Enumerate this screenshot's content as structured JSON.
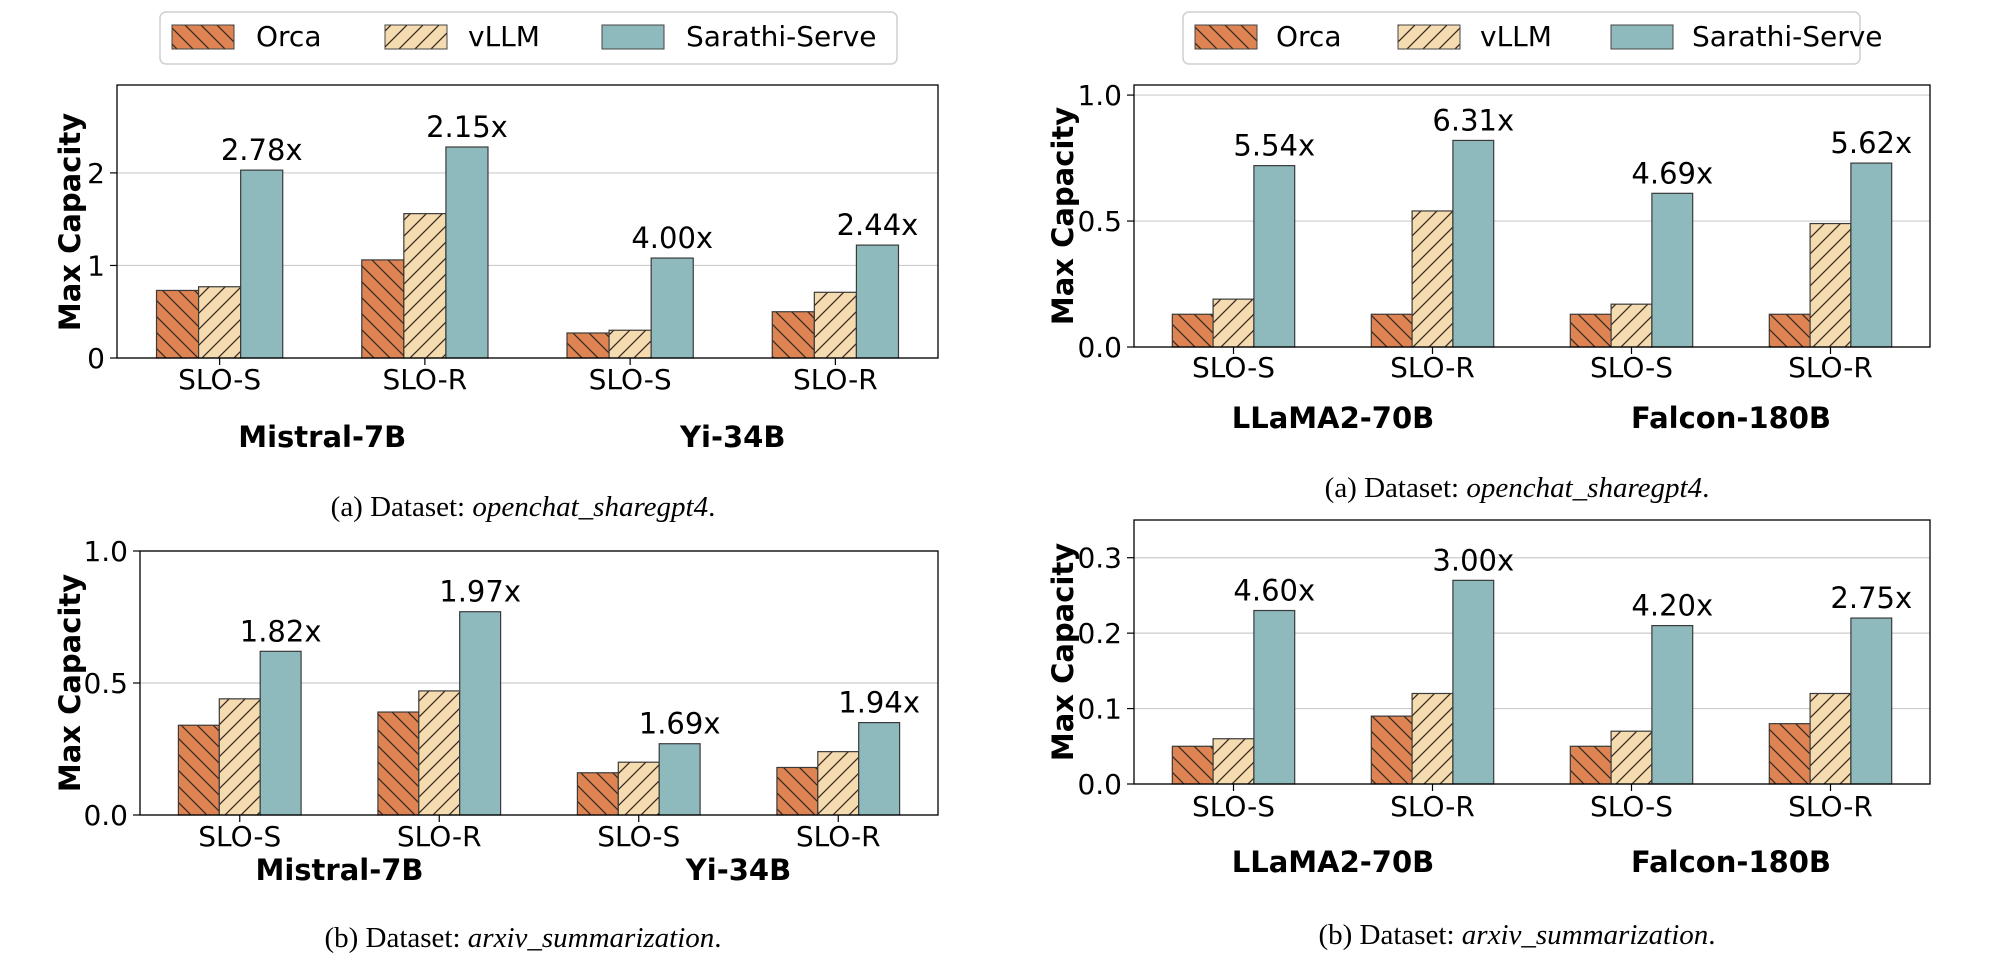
{
  "legend": {
    "items": [
      {
        "name": "Orca",
        "color": "#dd8452",
        "hatch": "backslash"
      },
      {
        "name": "vLLM",
        "color": "#f5dcb0",
        "hatch": "slash"
      },
      {
        "name": "Sarathi-Serve",
        "color": "#8fbabd",
        "hatch": "none"
      }
    ]
  },
  "captions": {
    "top_left": {
      "prefix": "(a) Dataset: ",
      "dataset": "openchat_sharegpt4",
      "suffix": "."
    },
    "bottom_left": {
      "prefix": "(b) Dataset: ",
      "dataset": "arxiv_summarization",
      "suffix": "."
    },
    "top_right": {
      "prefix": "(a) Dataset: ",
      "dataset": "openchat_sharegpt4",
      "suffix": "."
    },
    "bottom_right": {
      "prefix": "(b) Dataset: ",
      "dataset": "arxiv_summarization",
      "suffix": "."
    }
  },
  "chart_data": [
    {
      "id": "top-left",
      "type": "bar",
      "title": "",
      "ylabel": "Max Capacity",
      "xlabel": "",
      "ylim": [
        0,
        2.95
      ],
      "yticks": [
        0,
        1,
        2
      ],
      "ytick_labels": [
        "0",
        "1",
        "2"
      ],
      "grid": true,
      "categories": [
        "SLO-S",
        "SLO-R",
        "SLO-S",
        "SLO-R"
      ],
      "groups": [
        "Mistral-7B",
        "Yi-34B"
      ],
      "series": [
        {
          "name": "Orca",
          "values": [
            0.73,
            1.06,
            0.27,
            0.5
          ]
        },
        {
          "name": "vLLM",
          "values": [
            0.77,
            1.56,
            0.3,
            0.71
          ]
        },
        {
          "name": "Sarathi-Serve",
          "values": [
            2.03,
            2.28,
            1.08,
            1.22
          ]
        }
      ],
      "annotations": [
        "2.78x",
        "2.15x",
        "4.00x",
        "2.44x"
      ]
    },
    {
      "id": "bottom-left",
      "type": "bar",
      "title": "",
      "ylabel": "Max Capacity",
      "xlabel": "",
      "ylim": [
        0,
        1.0
      ],
      "yticks": [
        0,
        0.5,
        1.0
      ],
      "ytick_labels": [
        "0.0",
        "0.5",
        "1.0"
      ],
      "grid": true,
      "categories": [
        "SLO-S",
        "SLO-R",
        "SLO-S",
        "SLO-R"
      ],
      "groups": [
        "Mistral-7B",
        "Yi-34B"
      ],
      "series": [
        {
          "name": "Orca",
          "values": [
            0.34,
            0.39,
            0.16,
            0.18
          ]
        },
        {
          "name": "vLLM",
          "values": [
            0.44,
            0.47,
            0.2,
            0.24
          ]
        },
        {
          "name": "Sarathi-Serve",
          "values": [
            0.62,
            0.77,
            0.27,
            0.35
          ]
        }
      ],
      "annotations": [
        "1.82x",
        "1.97x",
        "1.69x",
        "1.94x"
      ]
    },
    {
      "id": "top-right",
      "type": "bar",
      "title": "",
      "ylabel": "Max Capacity",
      "xlabel": "",
      "ylim": [
        0,
        1.04
      ],
      "yticks": [
        0,
        0.5,
        1.0
      ],
      "ytick_labels": [
        "0.0",
        "0.5",
        "1.0"
      ],
      "grid": true,
      "categories": [
        "SLO-S",
        "SLO-R",
        "SLO-S",
        "SLO-R"
      ],
      "groups": [
        "LLaMA2-70B",
        "Falcon-180B"
      ],
      "series": [
        {
          "name": "Orca",
          "values": [
            0.13,
            0.13,
            0.13,
            0.13
          ]
        },
        {
          "name": "vLLM",
          "values": [
            0.19,
            0.54,
            0.17,
            0.49
          ]
        },
        {
          "name": "Sarathi-Serve",
          "values": [
            0.72,
            0.82,
            0.61,
            0.73
          ]
        }
      ],
      "annotations": [
        "5.54x",
        "6.31x",
        "4.69x",
        "5.62x"
      ]
    },
    {
      "id": "bottom-right",
      "type": "bar",
      "title": "",
      "ylabel": "Max Capacity",
      "xlabel": "",
      "ylim": [
        0,
        0.35
      ],
      "yticks": [
        0,
        0.1,
        0.2,
        0.3
      ],
      "ytick_labels": [
        "0.0",
        "0.1",
        "0.2",
        "0.3"
      ],
      "grid": true,
      "categories": [
        "SLO-S",
        "SLO-R",
        "SLO-S",
        "SLO-R"
      ],
      "groups": [
        "LLaMA2-70B",
        "Falcon-180B"
      ],
      "series": [
        {
          "name": "Orca",
          "values": [
            0.05,
            0.09,
            0.05,
            0.08
          ]
        },
        {
          "name": "vLLM",
          "values": [
            0.06,
            0.12,
            0.07,
            0.12
          ]
        },
        {
          "name": "Sarathi-Serve",
          "values": [
            0.23,
            0.27,
            0.21,
            0.22
          ]
        }
      ],
      "annotations": [
        "4.60x",
        "3.00x",
        "4.20x",
        "2.75x"
      ]
    }
  ]
}
